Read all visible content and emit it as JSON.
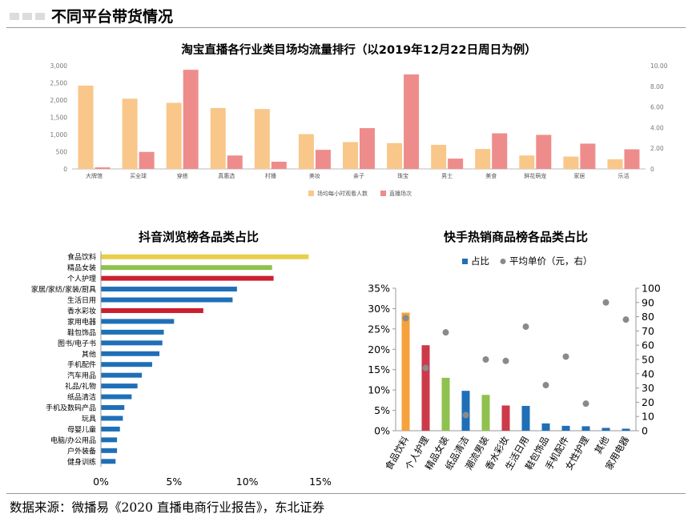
{
  "page_title": "不同平台带货情况",
  "source": "数据来源：微播易《2020 直播电商行业报告》，东北证券",
  "chart_data": [
    {
      "type": "bar",
      "title": "淘宝直播各行业类目场均流量排行（以2019年12月22日周日为例）",
      "categories": [
        "大牌馆",
        "买全球",
        "穿搭",
        "真惠选",
        "村播",
        "美妆",
        "亲子",
        "珠宝",
        "男士",
        "美食",
        "鲜花萌宠",
        "家居",
        "乐活"
      ],
      "series": [
        {
          "name": "场均每小时观看人数",
          "axis": "left",
          "color": "#f9c78a",
          "values": [
            2420,
            2040,
            1920,
            1770,
            1740,
            1010,
            780,
            750,
            700,
            580,
            390,
            360,
            280
          ]
        },
        {
          "name": "直播场次",
          "axis": "right",
          "color": "#ee8c8c",
          "values": [
            0.15,
            1.65,
            9.6,
            1.3,
            0.7,
            1.85,
            3.95,
            9.15,
            1.0,
            3.45,
            3.3,
            2.45,
            1.9
          ]
        }
      ],
      "ylim_left": [
        0,
        3000
      ],
      "ylim_right": [
        0,
        10
      ],
      "yticks_left": [
        "0",
        "500",
        "1,000",
        "1,500",
        "2,000",
        "2,500",
        "3,000"
      ],
      "yticks_right": [
        "0",
        "2.00",
        "4.00",
        "6.00",
        "8.00",
        "10.00"
      ],
      "legend": "bottom-center"
    },
    {
      "type": "bar",
      "orientation": "horizontal",
      "title": "抖音浏览榜各品类占比",
      "categories": [
        "食品饮料",
        "精品女装",
        "个人护理",
        "家居/家纺/家装/厨具",
        "生活日用",
        "香水彩妆",
        "家用电器",
        "鞋包饰品",
        "图书/电子书",
        "其他",
        "手机配件",
        "汽车用品",
        "礼品/礼物",
        "纸品清洁",
        "手机及数码产品",
        "玩具",
        "母婴儿童",
        "电脑/办公用品",
        "户外装备",
        "健身训练"
      ],
      "values": [
        14.2,
        11.7,
        11.8,
        9.3,
        9.0,
        7.0,
        5.0,
        4.3,
        4.2,
        4.0,
        3.5,
        2.8,
        2.5,
        2.1,
        1.6,
        1.5,
        1.3,
        1.1,
        1.1,
        1.0
      ],
      "colors": [
        "#e8cf4a",
        "#8fc14f",
        "#cc1f2f",
        "#1f6fb7",
        "#1f6fb7",
        "#cc1f2f",
        "#1f6fb7",
        "#1f6fb7",
        "#1f6fb7",
        "#1f6fb7",
        "#1f6fb7",
        "#1f6fb7",
        "#1f6fb7",
        "#1f6fb7",
        "#1f6fb7",
        "#1f6fb7",
        "#1f6fb7",
        "#1f6fb7",
        "#1f6fb7",
        "#1f6fb7"
      ],
      "xlim": [
        0,
        15
      ],
      "xticks": [
        "0%",
        "5%",
        "10%",
        "15%"
      ]
    },
    {
      "type": "bar+scatter",
      "title": "快手热销商品榜各品类占比",
      "categories": [
        "食品饮料",
        "个人护理",
        "精品女装",
        "纸品清洁",
        "潮流男装",
        "香水彩妆",
        "生活日用",
        "鞋包饰品",
        "手机配件",
        "女性护理",
        "其他",
        "家用电器"
      ],
      "series": [
        {
          "name": "占比",
          "axis": "left",
          "type": "bar",
          "values": [
            29.0,
            21.0,
            13.0,
            9.8,
            8.8,
            6.2,
            6.1,
            1.8,
            1.2,
            1.1,
            0.7,
            0.5
          ],
          "colors": [
            "#f5a23c",
            "#cc3a4a",
            "#8fc14f",
            "#1f6fb7",
            "#8fc14f",
            "#cc3a4a",
            "#1f6fb7",
            "#1f6fb7",
            "#1f6fb7",
            "#1f6fb7",
            "#1f6fb7",
            "#1f6fb7"
          ]
        },
        {
          "name": "平均单价（元，右）",
          "axis": "right",
          "type": "scatter",
          "color": "#8a8a8a",
          "values": [
            79,
            44,
            69,
            11,
            50,
            49,
            73,
            32,
            52,
            19,
            90,
            78
          ]
        }
      ],
      "ylim_left": [
        0,
        35
      ],
      "ylim_right": [
        0,
        100
      ],
      "yticks_left": [
        "0%",
        "5%",
        "10%",
        "15%",
        "20%",
        "25%",
        "30%",
        "35%"
      ],
      "yticks_right": [
        "0",
        "10",
        "20",
        "30",
        "40",
        "50",
        "60",
        "70",
        "80",
        "90",
        "100"
      ],
      "legend": "top-center"
    }
  ]
}
